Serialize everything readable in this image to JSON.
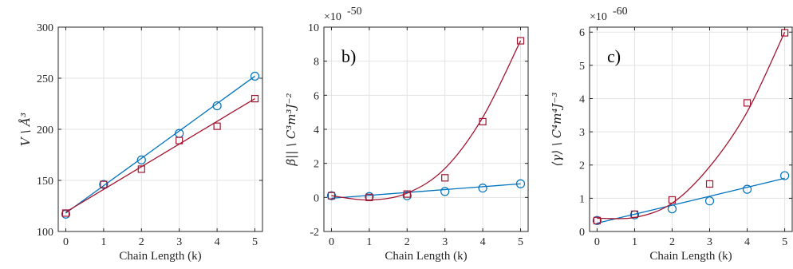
{
  "chart_data": [
    {
      "type": "line",
      "panel_label": "",
      "xlabel": "Chain Length (k)",
      "ylabel": "V \\ Å³",
      "exponent": "",
      "xlim": [
        -0.2,
        5.2
      ],
      "ylim": [
        100,
        300
      ],
      "xticks": [
        0,
        1,
        2,
        3,
        4,
        5
      ],
      "yticks": [
        100,
        150,
        200,
        250,
        300
      ],
      "grid": true,
      "series": [
        {
          "color": "#0072BD",
          "marker": "circle",
          "x": [
            0,
            1,
            2,
            3,
            4,
            5
          ],
          "y": [
            117,
            146,
            170,
            196,
            223,
            252
          ],
          "fit_y": [
            118,
            144.8,
            171.6,
            198.4,
            225.2,
            252
          ]
        },
        {
          "color": "#A2142F",
          "marker": "square",
          "x": [
            0,
            1,
            2,
            3,
            4,
            5
          ],
          "y": [
            118,
            146,
            161,
            189,
            203,
            230
          ],
          "fit_y": [
            119,
            141.2,
            163.4,
            185.6,
            207.8,
            230
          ]
        }
      ]
    },
    {
      "type": "line",
      "panel_label": "b)",
      "xlabel": "Chain Length (k)",
      "ylabel": "β|| \\ C³m³J⁻²",
      "exponent": "×10",
      "exponent_power": "-50",
      "xlim": [
        -0.2,
        5.2
      ],
      "ylim": [
        -2,
        10
      ],
      "xticks": [
        0,
        1,
        2,
        3,
        4,
        5
      ],
      "yticks": [
        -2,
        0,
        2,
        4,
        6,
        8,
        10
      ],
      "grid": true,
      "series": [
        {
          "color": "#0072BD",
          "marker": "circle",
          "x": [
            0,
            1,
            2,
            3,
            4,
            5
          ],
          "y": [
            0.1,
            0.05,
            0.1,
            0.35,
            0.55,
            0.8
          ],
          "fit_y": [
            -0.05,
            0.12,
            0.29,
            0.46,
            0.63,
            0.8
          ]
        },
        {
          "color": "#A2142F",
          "marker": "square",
          "x": [
            0,
            1,
            2,
            3,
            4,
            5
          ],
          "y": [
            0.1,
            0.0,
            0.2,
            1.15,
            4.45,
            9.2
          ],
          "fit_y": [
            0.1,
            -0.15,
            0.25,
            1.7,
            4.7,
            9.2
          ]
        }
      ]
    },
    {
      "type": "line",
      "panel_label": "c)",
      "xlabel": "Chain Length (k)",
      "ylabel": "⟨γ⟩ \\ C⁴m⁴J⁻³",
      "exponent": "×10",
      "exponent_power": "-60",
      "xlim": [
        -0.2,
        5.2
      ],
      "ylim": [
        0,
        6.15
      ],
      "xticks": [
        0,
        1,
        2,
        3,
        4,
        5
      ],
      "yticks": [
        0,
        1,
        2,
        3,
        4,
        5,
        6
      ],
      "grid": true,
      "series": [
        {
          "color": "#0072BD",
          "marker": "circle",
          "x": [
            0,
            1,
            2,
            3,
            4,
            5
          ],
          "y": [
            0.33,
            0.5,
            0.68,
            0.92,
            1.27,
            1.68
          ],
          "fit_y": [
            0.25,
            0.52,
            0.79,
            1.06,
            1.33,
            1.6
          ]
        },
        {
          "color": "#A2142F",
          "marker": "square",
          "x": [
            0,
            1,
            2,
            3,
            4,
            5
          ],
          "y": [
            0.33,
            0.52,
            0.95,
            1.43,
            3.87,
            5.98
          ],
          "fit_y": [
            0.4,
            0.42,
            0.85,
            1.95,
            3.6,
            6.0
          ]
        }
      ]
    }
  ]
}
